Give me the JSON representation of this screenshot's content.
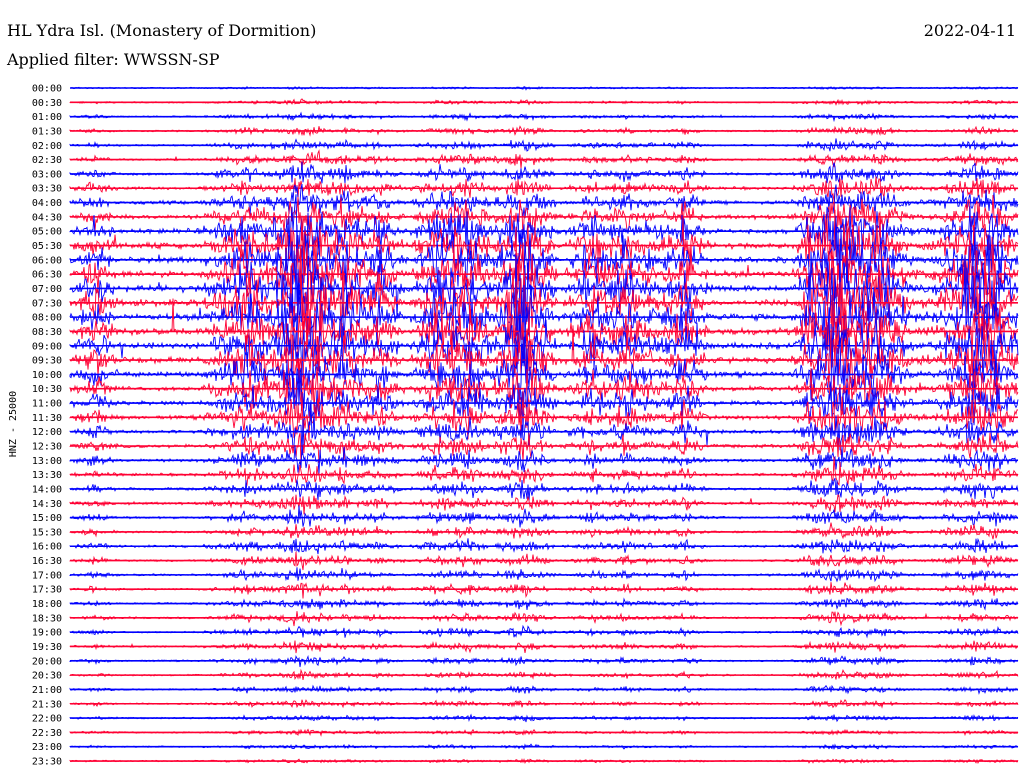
{
  "header": {
    "station": "HL Ydra Isl. (Monastery of Dormition)",
    "filter": "Applied filter: WWSSN-SP",
    "date": "2022-04-11"
  },
  "chart_data": {
    "type": "line",
    "channel_label": "HNZ - 25000",
    "trace_colors": [
      "#0000ff",
      "#ff0033"
    ],
    "rows": [
      "00:00",
      "00:30",
      "01:00",
      "01:30",
      "02:00",
      "02:30",
      "03:00",
      "03:30",
      "04:00",
      "04:30",
      "05:00",
      "05:30",
      "06:00",
      "06:30",
      "07:00",
      "07:30",
      "08:00",
      "08:30",
      "09:00",
      "09:30",
      "10:00",
      "10:30",
      "11:00",
      "11:30",
      "12:00",
      "12:30",
      "13:00",
      "13:30",
      "14:00",
      "14:30",
      "15:00",
      "15:30",
      "16:00",
      "16:30",
      "17:00",
      "17:30",
      "18:00",
      "18:30",
      "19:00",
      "19:30",
      "20:00",
      "20:30",
      "21:00",
      "21:30",
      "22:00",
      "22:30",
      "23:00",
      "23:30"
    ],
    "activity_level": [
      0.02,
      0.05,
      0.08,
      0.1,
      0.14,
      0.18,
      0.25,
      0.32,
      0.42,
      0.55,
      0.7,
      0.82,
      0.9,
      0.95,
      0.98,
      1.0,
      0.98,
      0.95,
      0.9,
      0.85,
      0.78,
      0.72,
      0.62,
      0.55,
      0.45,
      0.38,
      0.32,
      0.28,
      0.26,
      0.24,
      0.22,
      0.2,
      0.2,
      0.18,
      0.17,
      0.16,
      0.15,
      0.14,
      0.13,
      0.12,
      0.11,
      0.1,
      0.09,
      0.08,
      0.07,
      0.06,
      0.05,
      0.04
    ]
  }
}
